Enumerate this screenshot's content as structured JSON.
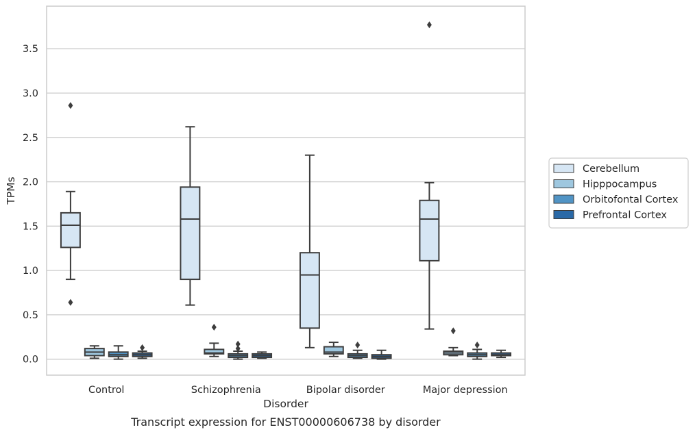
{
  "caption": "Transcript expression for ENST00000606738 by disorder",
  "chart_data": {
    "type": "box",
    "title": "",
    "xlabel": "Disorder",
    "ylabel": "TPMs",
    "ylim": [
      -0.18,
      3.98
    ],
    "yticks": [
      "0.0",
      "0.5",
      "1.0",
      "1.5",
      "2.0",
      "2.5",
      "3.0",
      "3.5"
    ],
    "grid": "horizontal",
    "legend_position": "right",
    "categories": [
      "Control",
      "Schizophrenia",
      "Bipolar disorder",
      "Major depression"
    ],
    "series": [
      {
        "name": "Cerebellum",
        "color": "#d6e6f4",
        "boxes": [
          {
            "whisker_low": 0.9,
            "q1": 1.26,
            "median": 1.51,
            "q3": 1.65,
            "whisker_high": 1.89,
            "outliers": [
              2.86,
              0.64
            ]
          },
          {
            "whisker_low": 0.61,
            "q1": 0.9,
            "median": 1.58,
            "q3": 1.94,
            "whisker_high": 2.62,
            "outliers": []
          },
          {
            "whisker_low": 0.13,
            "q1": 0.35,
            "median": 0.95,
            "q3": 1.2,
            "whisker_high": 2.3,
            "outliers": []
          },
          {
            "whisker_low": 0.34,
            "q1": 1.11,
            "median": 1.58,
            "q3": 1.79,
            "whisker_high": 1.99,
            "outliers": [
              3.77
            ]
          }
        ]
      },
      {
        "name": "Hipppocampus",
        "color": "#9ec7df",
        "boxes": [
          {
            "whisker_low": 0.01,
            "q1": 0.04,
            "median": 0.08,
            "q3": 0.12,
            "whisker_high": 0.15,
            "outliers": []
          },
          {
            "whisker_low": 0.03,
            "q1": 0.06,
            "median": 0.07,
            "q3": 0.11,
            "whisker_high": 0.18,
            "outliers": [
              0.36
            ]
          },
          {
            "whisker_low": 0.03,
            "q1": 0.06,
            "median": 0.08,
            "q3": 0.14,
            "whisker_high": 0.19,
            "outliers": []
          },
          {
            "whisker_low": 0.04,
            "q1": 0.05,
            "median": 0.07,
            "q3": 0.09,
            "whisker_high": 0.13,
            "outliers": [
              0.32
            ]
          }
        ]
      },
      {
        "name": "Orbitofontal Cortex",
        "color": "#5194c5",
        "boxes": [
          {
            "whisker_low": 0.0,
            "q1": 0.03,
            "median": 0.05,
            "q3": 0.08,
            "whisker_high": 0.15,
            "outliers": []
          },
          {
            "whisker_low": 0.0,
            "q1": 0.02,
            "median": 0.04,
            "q3": 0.06,
            "whisker_high": 0.09,
            "outliers": [
              0.12,
              0.17
            ]
          },
          {
            "whisker_low": 0.01,
            "q1": 0.02,
            "median": 0.04,
            "q3": 0.06,
            "whisker_high": 0.1,
            "outliers": [
              0.16
            ]
          },
          {
            "whisker_low": 0.0,
            "q1": 0.03,
            "median": 0.05,
            "q3": 0.07,
            "whisker_high": 0.11,
            "outliers": [
              0.16
            ]
          }
        ]
      },
      {
        "name": "Prefrontal Cortex",
        "color": "#2a69a7",
        "boxes": [
          {
            "whisker_low": 0.01,
            "q1": 0.03,
            "median": 0.05,
            "q3": 0.07,
            "whisker_high": 0.09,
            "outliers": [
              0.13
            ]
          },
          {
            "whisker_low": 0.01,
            "q1": 0.02,
            "median": 0.04,
            "q3": 0.06,
            "whisker_high": 0.08,
            "outliers": []
          },
          {
            "whisker_low": 0.0,
            "q1": 0.01,
            "median": 0.03,
            "q3": 0.05,
            "whisker_high": 0.1,
            "outliers": []
          },
          {
            "whisker_low": 0.02,
            "q1": 0.04,
            "median": 0.05,
            "q3": 0.07,
            "whisker_high": 0.1,
            "outliers": []
          }
        ]
      }
    ]
  }
}
